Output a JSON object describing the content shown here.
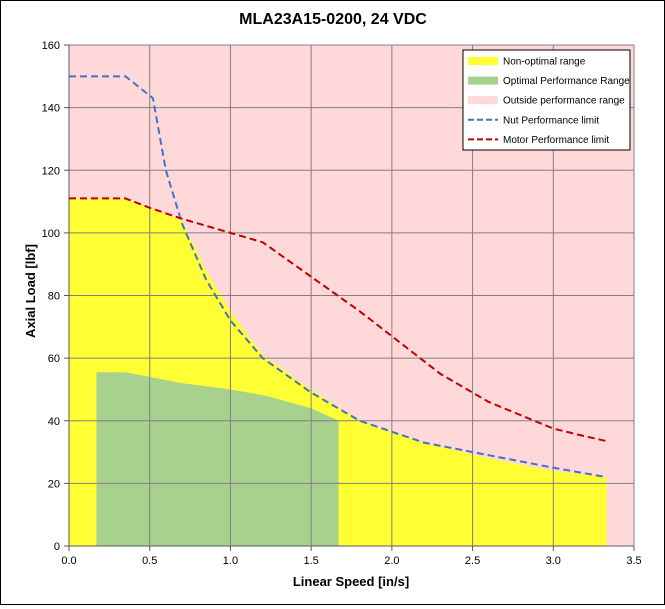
{
  "chart_data": {
    "type": "area",
    "title": "MLA23A15-0200, 24 VDC",
    "xlabel": "Linear Speed [in/s]",
    "ylabel": "Axial Load [lbf]",
    "xlim": [
      0,
      3.5
    ],
    "ylim": [
      0,
      160
    ],
    "xticks": [
      0,
      0.5,
      1.0,
      1.5,
      2.0,
      2.5,
      3.0,
      3.5
    ],
    "xtick_labels": [
      "0.0",
      "0.5",
      "1.0",
      "1.5",
      "2.0",
      "2.5",
      "3.0",
      "3.5"
    ],
    "yticks": [
      0,
      20,
      40,
      60,
      80,
      100,
      120,
      140,
      160
    ],
    "ytick_labels": [
      "0",
      "20",
      "40",
      "60",
      "80",
      "100",
      "120",
      "140",
      "160"
    ],
    "grid": true,
    "legend_position": "top-right",
    "colors": {
      "background_region": "#ffd9d9",
      "non_optimal": "#ffff33",
      "optimal": "#a9d18e",
      "nut_limit": "#4472c4",
      "motor_limit": "#c00000",
      "grid": "#808080"
    },
    "series": [
      {
        "name": "Non-optimal range",
        "kind": "area",
        "x": [
          0,
          0.35,
          0.5,
          0.7,
          0.85,
          1.0,
          1.2,
          1.5,
          1.8,
          2.2,
          2.6,
          3.0,
          3.33,
          3.33
        ],
        "y": [
          111,
          111,
          108,
          104,
          88,
          75,
          61,
          50,
          40,
          33,
          28,
          24,
          22,
          0
        ]
      },
      {
        "name": "Optimal Performance Range",
        "kind": "area",
        "x": [
          0.17,
          0.17,
          0.35,
          0.7,
          1.0,
          1.22,
          1.5,
          1.67,
          1.67
        ],
        "y": [
          0,
          55.5,
          55.5,
          52,
          50,
          48,
          44,
          40,
          0
        ]
      },
      {
        "name": "Outside performance range",
        "kind": "area"
      },
      {
        "name": "Nut Performance limit",
        "kind": "line",
        "x": [
          0,
          0.35,
          0.52,
          0.6,
          0.7,
          0.85,
          1.0,
          1.2,
          1.5,
          1.8,
          2.2,
          2.6,
          3.0,
          3.33
        ],
        "y": [
          150,
          150,
          143,
          120,
          103,
          85,
          72,
          60,
          49,
          40,
          33,
          29,
          25,
          22
        ]
      },
      {
        "name": "Motor Performance limit",
        "kind": "line",
        "x": [
          0,
          0.35,
          0.5,
          0.7,
          1.0,
          1.2,
          1.5,
          1.8,
          2.0,
          2.3,
          2.6,
          3.0,
          3.2,
          3.33
        ],
        "y": [
          111,
          111,
          108,
          104.5,
          100,
          97,
          86,
          75,
          67,
          55,
          46,
          37.5,
          35,
          33.5
        ]
      }
    ]
  }
}
